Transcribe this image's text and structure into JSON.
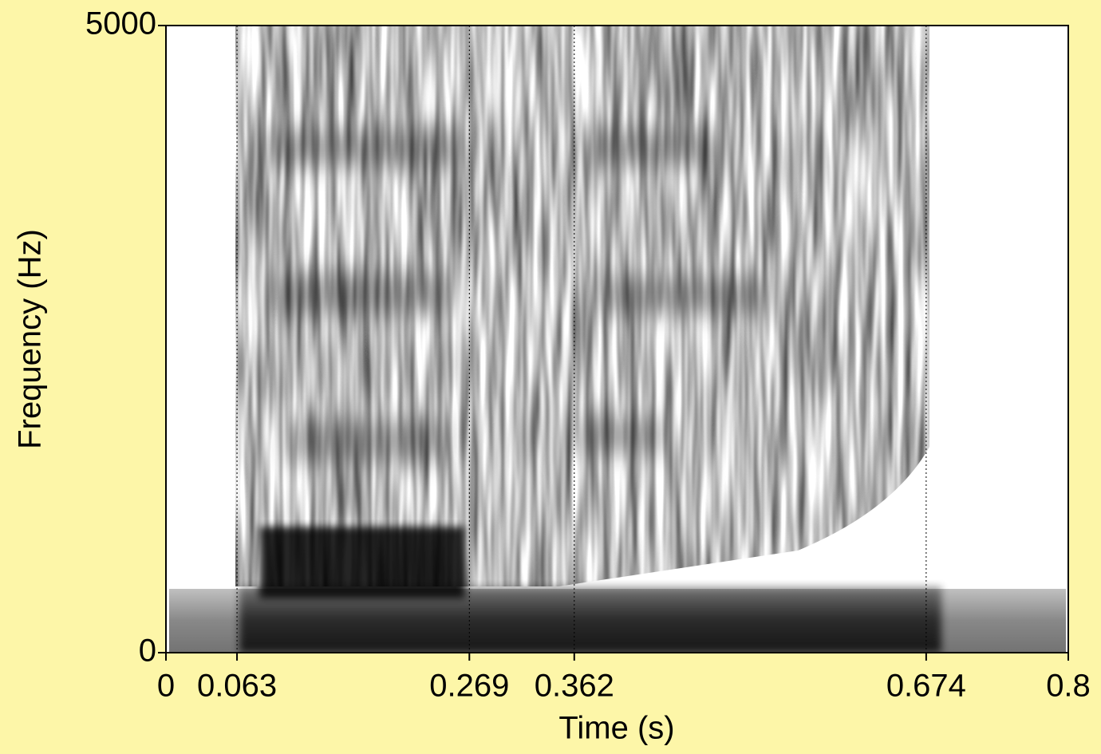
{
  "chart_data": {
    "type": "spectrogram",
    "xlabel": "Time (s)",
    "ylabel": "Frequency (Hz)",
    "xlim": [
      0,
      0.8
    ],
    "ylim": [
      0,
      5000
    ],
    "xticks": [
      0,
      0.063,
      0.269,
      0.362,
      0.674,
      0.8
    ],
    "yticks": [
      0,
      5000
    ],
    "grid": true
  }
}
